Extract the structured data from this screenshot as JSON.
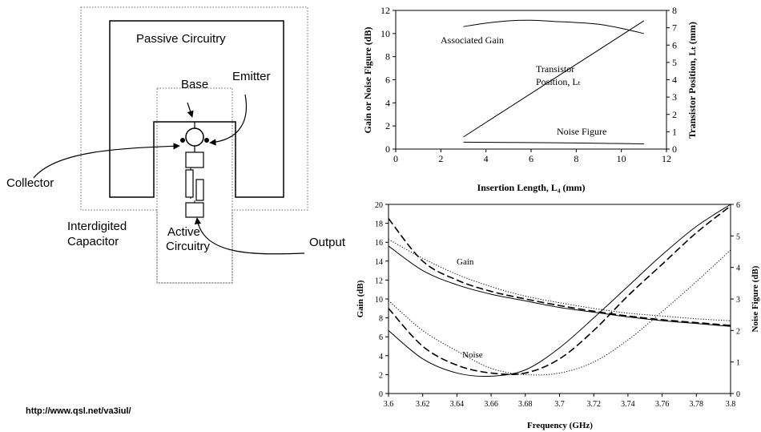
{
  "diagram": {
    "passive_label": "Passive Circuitry",
    "base_label": "Base",
    "emitter_label": "Emitter",
    "collector_label": "Collector",
    "interdigited_label_1": "Interdigited",
    "interdigited_label_2": "Capacitor",
    "active_label_1": "Active",
    "active_label_2": "Circuitry",
    "output_label": "Output"
  },
  "url": "http://www.qsl.net/va3iul/",
  "chart_data": [
    {
      "type": "line",
      "xlabel": "Insertion Length, L₄ (mm)",
      "ylabel": "Gain or Noise Figure (dB)",
      "y2label": "Transistor Position, Lₜ (mm)",
      "xlim": [
        0,
        12
      ],
      "ylim": [
        0,
        12
      ],
      "y2lim": [
        0,
        8
      ],
      "xticks": [
        "0",
        "2",
        "4",
        "6",
        "8",
        "10",
        "12"
      ],
      "yticks": [
        "0",
        "2",
        "4",
        "6",
        "8",
        "10",
        "12"
      ],
      "y2ticks": [
        "0",
        "1",
        "2",
        "3",
        "4",
        "5",
        "6",
        "7",
        "8"
      ],
      "annotations": [
        "Associated Gain",
        "Transistor",
        "Position, Lₜ",
        "Noise Figure"
      ],
      "series": [
        {
          "name": "Associated Gain",
          "axis": "left",
          "x": [
            3,
            4,
            5,
            6,
            7,
            8,
            9,
            10,
            11
          ],
          "y": [
            10.6,
            10.9,
            11.1,
            11.15,
            11.05,
            10.95,
            10.8,
            10.45,
            10.0
          ]
        },
        {
          "name": "Transistor Position, Lₜ",
          "axis": "right",
          "x": [
            3,
            11
          ],
          "y": [
            0.7,
            7.4
          ]
        },
        {
          "name": "Noise Figure",
          "axis": "left",
          "x": [
            3,
            5,
            7,
            9,
            11
          ],
          "y": [
            0.6,
            0.57,
            0.55,
            0.5,
            0.45
          ]
        }
      ]
    },
    {
      "type": "line",
      "xlabel": "Frequency (GHz)",
      "ylabel": "Gain (dB)",
      "y2label": "Noise Figure (dB)",
      "xlim": [
        3.6,
        3.8
      ],
      "ylim": [
        0,
        20
      ],
      "y2lim": [
        0,
        6
      ],
      "xticks": [
        "3.6",
        "3.62",
        "3.64",
        "3.66",
        "3.68",
        "3.7",
        "3.72",
        "3.74",
        "3.76",
        "3.78",
        "3.8"
      ],
      "yticks": [
        "0",
        "2",
        "4",
        "6",
        "8",
        "10",
        "12",
        "14",
        "16",
        "18",
        "20"
      ],
      "y2ticks": [
        "0",
        "1",
        "2",
        "3",
        "4",
        "5",
        "6"
      ],
      "annotations": [
        "Gain",
        "Noise"
      ],
      "series": [
        {
          "group": "gain",
          "style": "solid",
          "axis": "left",
          "x": [
            3.6,
            3.62,
            3.64,
            3.66,
            3.68,
            3.7,
            3.72,
            3.74,
            3.76,
            3.78,
            3.8
          ],
          "y": [
            15.6,
            13.0,
            11.5,
            10.5,
            9.8,
            9.1,
            8.6,
            8.1,
            7.7,
            7.4,
            7.1
          ]
        },
        {
          "group": "gain",
          "style": "dashed",
          "axis": "left",
          "x": [
            3.6,
            3.62,
            3.64,
            3.66,
            3.68,
            3.7,
            3.72,
            3.74,
            3.76,
            3.78,
            3.8
          ],
          "y": [
            18.5,
            14.0,
            12.0,
            10.8,
            10.0,
            9.3,
            8.7,
            8.2,
            7.8,
            7.5,
            7.2
          ]
        },
        {
          "group": "gain",
          "style": "dotted",
          "axis": "left",
          "x": [
            3.6,
            3.62,
            3.64,
            3.66,
            3.68,
            3.7,
            3.72,
            3.74,
            3.76,
            3.78,
            3.8
          ],
          "y": [
            16.3,
            14.3,
            12.6,
            11.3,
            10.3,
            9.6,
            9.0,
            8.5,
            8.2,
            7.9,
            7.7
          ]
        },
        {
          "group": "noise",
          "style": "solid",
          "axis": "right",
          "x": [
            3.6,
            3.62,
            3.64,
            3.66,
            3.68,
            3.7,
            3.72,
            3.74,
            3.76,
            3.78,
            3.8
          ],
          "y": [
            2.0,
            1.1,
            0.65,
            0.55,
            0.75,
            1.45,
            2.4,
            3.4,
            4.4,
            5.3,
            6.0
          ]
        },
        {
          "group": "noise",
          "style": "dashed",
          "axis": "right",
          "x": [
            3.6,
            3.62,
            3.64,
            3.66,
            3.68,
            3.7,
            3.72,
            3.74,
            3.76,
            3.78,
            3.8
          ],
          "y": [
            2.7,
            1.5,
            0.9,
            0.65,
            0.65,
            1.1,
            2.0,
            3.1,
            4.1,
            5.1,
            5.95
          ]
        },
        {
          "group": "noise",
          "style": "dotted",
          "axis": "right",
          "x": [
            3.6,
            3.62,
            3.64,
            3.66,
            3.68,
            3.7,
            3.72,
            3.74,
            3.76,
            3.78,
            3.8
          ],
          "y": [
            2.95,
            2.0,
            1.35,
            0.8,
            0.6,
            0.65,
            1.0,
            1.7,
            2.6,
            3.55,
            4.55
          ]
        }
      ]
    }
  ]
}
